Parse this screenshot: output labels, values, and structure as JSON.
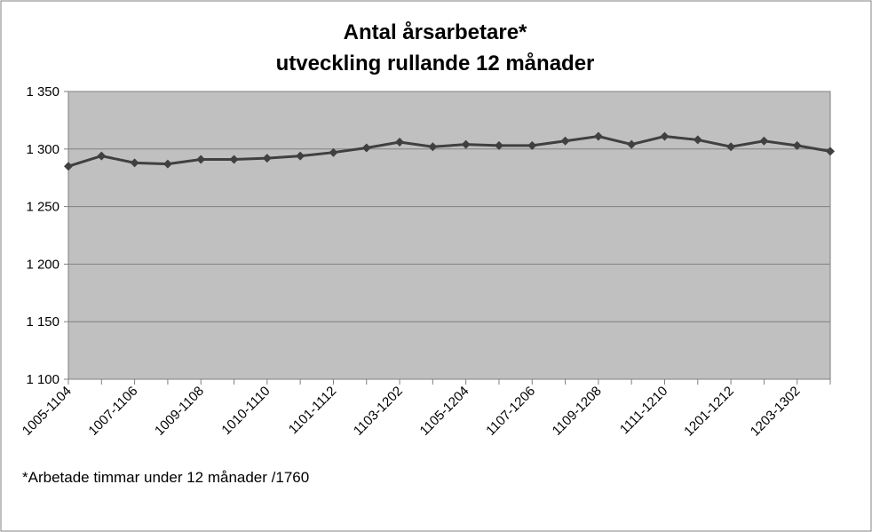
{
  "chart_data": {
    "type": "line",
    "title": "Antal årsarbetare*",
    "subtitle": "utveckling rullande 12 månader",
    "footnote": "*Arbetade timmar under 12 månader /1760",
    "categories": [
      "1005-1104",
      null,
      "1007-1106",
      null,
      "1009-1108",
      null,
      "1010-1110",
      null,
      "1101-1112",
      null,
      "1103-1202",
      null,
      "1105-1204",
      null,
      "1107-1206",
      null,
      "1109-1208",
      null,
      "1111-1210",
      null,
      "1201-1212",
      null,
      "1203-1302",
      null
    ],
    "series": [
      {
        "name": "Antal årsarbetare",
        "color": "#404040",
        "values": [
          1285,
          1294,
          1288,
          1287,
          1291,
          1291,
          1292,
          1294,
          1297,
          1301,
          1306,
          1302,
          1304,
          1303,
          1303,
          1307,
          1311,
          1304,
          1311,
          1308,
          1302,
          1307,
          1303,
          1298
        ]
      }
    ],
    "ylim": [
      1100,
      1350
    ],
    "yticks": [
      {
        "value": 1100,
        "label": "1 100"
      },
      {
        "value": 1150,
        "label": "1 150"
      },
      {
        "value": 1200,
        "label": "1 200"
      },
      {
        "value": 1250,
        "label": "1 250"
      },
      {
        "value": 1300,
        "label": "1 300"
      },
      {
        "value": 1350,
        "label": "1 350"
      }
    ],
    "grid": true,
    "plot_background": "#c0c0c0"
  }
}
